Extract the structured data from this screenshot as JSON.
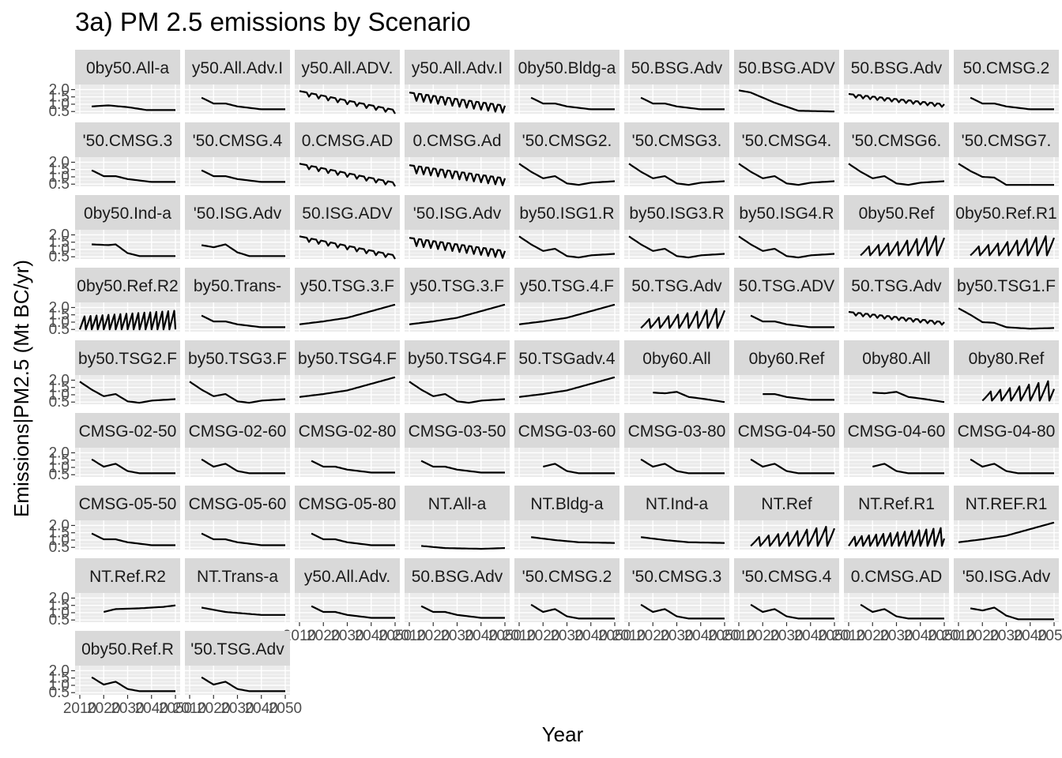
{
  "chart_data": {
    "type": "line",
    "title": "3a) PM 2.5 emissions by Scenario",
    "xlabel": "Year",
    "ylabel": "Emissions|PM2.5 (Mt BC/yr)",
    "x_tick_labels": [
      "2010",
      "2020",
      "2030",
      "2040",
      "2050"
    ],
    "y_tick_labels": [
      "0.5",
      "1.0",
      "1.5",
      "2.0"
    ],
    "xlim": [
      2010,
      2050
    ],
    "ylim": [
      0.35,
      2.35
    ],
    "panel_background": "#ebebeb",
    "strip_background": "#d9d9d9",
    "line_color": "#000000",
    "grid": true,
    "layout": {
      "columns": 9,
      "rows": 9
    },
    "panels": [
      {
        "label": "0by50.All-a",
        "shape": "gentle",
        "start": 2015
      },
      {
        "label": "y50.All.Adv.I",
        "shape": "mild",
        "start": 2015
      },
      {
        "label": "y50.All.ADV.",
        "shape": "stepdown",
        "start": 2010
      },
      {
        "label": "y50.All.Adv.I",
        "shape": "stepdown_alt",
        "start": 2010
      },
      {
        "label": "0by50.Bldg-a",
        "shape": "mild",
        "start": 2015
      },
      {
        "label": "50.BSG.Adv",
        "shape": "mild",
        "start": 2015
      },
      {
        "label": "50.BSG.ADV",
        "shape": "smooth_down",
        "start": 2010
      },
      {
        "label": "50.BSG.Adv",
        "shape": "stepdown_alt2",
        "start": 2010
      },
      {
        "label": "50.CMSG.2",
        "shape": "mild",
        "start": 2015
      },
      {
        "label": "'50.CMSG.3",
        "shape": "mild",
        "start": 2015
      },
      {
        "label": "'50.CMSG.4",
        "shape": "mild",
        "start": 2015
      },
      {
        "label": "0.CMSG.AD",
        "shape": "stepdown",
        "start": 2010
      },
      {
        "label": "0.CMSG.Ad",
        "shape": "stepdown_alt",
        "start": 2010
      },
      {
        "label": "'50.CMSG2.",
        "shape": "zig",
        "start": 2010
      },
      {
        "label": "'50.CMSG3.",
        "shape": "zig",
        "start": 2010
      },
      {
        "label": "'50.CMSG4.",
        "shape": "zig",
        "start": 2010
      },
      {
        "label": "'50.CMSG6.",
        "shape": "zig",
        "start": 2010
      },
      {
        "label": "'50.CMSG7.",
        "shape": "zig_low",
        "start": 2010
      },
      {
        "label": "0by50.Ind-a",
        "shape": "plateau",
        "start": 2015
      },
      {
        "label": "'50.ISG.Adv",
        "shape": "plateau2",
        "start": 2015
      },
      {
        "label": "50.ISG.ADV",
        "shape": "stepdown",
        "start": 2010
      },
      {
        "label": "'50.ISG.Adv",
        "shape": "stepdown_alt",
        "start": 2010
      },
      {
        "label": "by50.ISG1.R",
        "shape": "zig",
        "start": 2010
      },
      {
        "label": "by50.ISG3.R",
        "shape": "zig",
        "start": 2010
      },
      {
        "label": "by50.ISG4.R",
        "shape": "zig",
        "start": 2010
      },
      {
        "label": "0by50.Ref",
        "shape": "sawtooth",
        "start": 2015
      },
      {
        "label": "0by50.Ref.R1",
        "shape": "sawtooth",
        "start": 2015
      },
      {
        "label": "0by50.Ref.R2",
        "shape": "sawtooth_dense",
        "start": 2010
      },
      {
        "label": "by50.Trans-",
        "shape": "mild",
        "start": 2015
      },
      {
        "label": "y50.TSG.3.F",
        "shape": "rising",
        "start": 2010
      },
      {
        "label": "y50.TSG.3.F",
        "shape": "rising",
        "start": 2010
      },
      {
        "label": "y50.TSG.4.F",
        "shape": "rising",
        "start": 2010
      },
      {
        "label": "50.TSG.Adv",
        "shape": "sawtooth",
        "start": 2015
      },
      {
        "label": "50.TSG.ADV",
        "shape": "mild",
        "start": 2015
      },
      {
        "label": "50.TSG.Adv",
        "shape": "stepdown_alt2",
        "start": 2010
      },
      {
        "label": "by50.TSG1.F",
        "shape": "fall",
        "start": 2010
      },
      {
        "label": "by50.TSG2.F",
        "shape": "zig",
        "start": 2010
      },
      {
        "label": "by50.TSG3.F",
        "shape": "zig",
        "start": 2010
      },
      {
        "label": "by50.TSG4.F",
        "shape": "rising",
        "start": 2010
      },
      {
        "label": "by50.TSG4.F",
        "shape": "zig",
        "start": 2010
      },
      {
        "label": "50.TSGadv.4",
        "shape": "rising",
        "start": 2010
      },
      {
        "label": "0by60.All",
        "shape": "plateau3",
        "start": 2020
      },
      {
        "label": "0by60.Ref",
        "shape": "mild",
        "start": 2020
      },
      {
        "label": "0by80.All",
        "shape": "plateau3",
        "start": 2020
      },
      {
        "label": "0by80.Ref",
        "shape": "sawtooth",
        "start": 2020
      },
      {
        "label": "CMSG-02-50",
        "shape": "bump",
        "start": 2015
      },
      {
        "label": "CMSG-02-60",
        "shape": "bump",
        "start": 2015
      },
      {
        "label": "CMSG-02-80",
        "shape": "mild",
        "start": 2015
      },
      {
        "label": "CMSG-03-50",
        "shape": "mild",
        "start": 2015
      },
      {
        "label": "CMSG-03-60",
        "shape": "bump",
        "start": 2020
      },
      {
        "label": "CMSG-03-80",
        "shape": "bump",
        "start": 2015
      },
      {
        "label": "CMSG-04-50",
        "shape": "bump",
        "start": 2015
      },
      {
        "label": "CMSG-04-60",
        "shape": "bump",
        "start": 2020
      },
      {
        "label": "CMSG-04-80",
        "shape": "bump",
        "start": 2015
      },
      {
        "label": "CMSG-05-50",
        "shape": "mild",
        "start": 2015
      },
      {
        "label": "CMSG-05-60",
        "shape": "mild",
        "start": 2015
      },
      {
        "label": "CMSG-05-80",
        "shape": "mild",
        "start": 2015
      },
      {
        "label": "NT.All-a",
        "shape": "flatlow",
        "start": 2015
      },
      {
        "label": "NT.Bldg-a",
        "shape": "flatmid",
        "start": 2015
      },
      {
        "label": "NT.Ind-a",
        "shape": "flatmid",
        "start": 2015
      },
      {
        "label": "NT.Ref",
        "shape": "sawtooth",
        "start": 2015
      },
      {
        "label": "NT.Ref.R1",
        "shape": "sawtooth_r1",
        "start": 2010
      },
      {
        "label": "NT.REF.R1",
        "shape": "rising",
        "start": 2010
      },
      {
        "label": "NT.Ref.R2",
        "shape": "flatup",
        "start": 2020
      },
      {
        "label": "NT.Trans-a",
        "shape": "flatmid2",
        "start": 2015
      },
      {
        "label": "y50.All.Adv.",
        "shape": "mild",
        "start": 2015
      },
      {
        "label": "50.BSG.Adv",
        "shape": "mild",
        "start": 2015
      },
      {
        "label": "'50.CMSG.2",
        "shape": "bump",
        "start": 2015
      },
      {
        "label": "'50.CMSG.3",
        "shape": "bump",
        "start": 2015
      },
      {
        "label": "'50.CMSG.4",
        "shape": "bump",
        "start": 2015
      },
      {
        "label": "0.CMSG.AD",
        "shape": "bump",
        "start": 2015
      },
      {
        "label": "'50.ISG.Adv",
        "shape": "plateau2",
        "start": 2015
      },
      {
        "label": "0by50.Ref.R",
        "shape": "bump",
        "start": 2015
      },
      {
        "label": "'50.TSG.Adv",
        "shape": "bump",
        "start": 2015
      }
    ]
  }
}
